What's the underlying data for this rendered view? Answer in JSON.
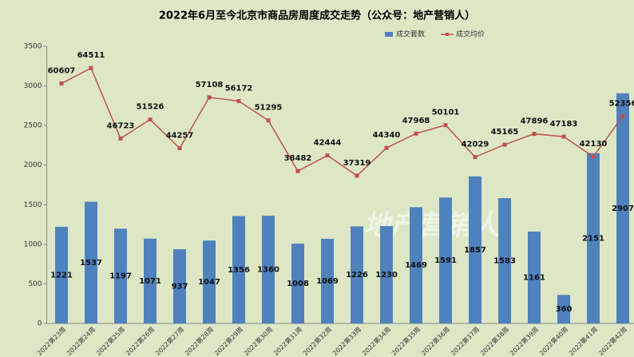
{
  "chart_data": {
    "type": "bar_line",
    "title": "2022年6月至今北京市商品房周度成交走势（公众号：地产营销人）",
    "watermark": "地产营销人",
    "categories": [
      "2022第23周",
      "2022第24周",
      "2022第25周",
      "2022第26周",
      "2022第27周",
      "2022第28周",
      "2022第29周",
      "2022第30周",
      "2022第31周",
      "2022第32周",
      "2022第33周",
      "2022第34周",
      "2022第35周",
      "2022第36周",
      "2022第37周",
      "2022第38周",
      "2022第39周",
      "2022第40周",
      "2022第41周",
      "2022第42周"
    ],
    "series": [
      {
        "name": "成交套数",
        "color": "#4f81bd",
        "type": "bar",
        "values": [
          1221,
          1537,
          1197,
          1071,
          937,
          1047,
          1356,
          1360,
          1008,
          1069,
          1226,
          1230,
          1469,
          1591,
          1857,
          1583,
          1161,
          360,
          2151,
          2907
        ]
      },
      {
        "name": "成交均价",
        "color": "#c0504d",
        "type": "line",
        "axis": "y2",
        "values": [
          60607,
          64511,
          46723,
          51526,
          44257,
          57108,
          56172,
          51295,
          38482,
          42444,
          37319,
          44340,
          47968,
          50101,
          42029,
          45165,
          47896,
          47183,
          42130,
          52356
        ]
      }
    ],
    "ylim": [
      0,
      3500
    ],
    "yticks": [
      0,
      500,
      1000,
      1500,
      2000,
      2500,
      3000,
      3500
    ],
    "y2lim": [
      0,
      70000
    ],
    "grid": false,
    "legend": "top-right"
  }
}
